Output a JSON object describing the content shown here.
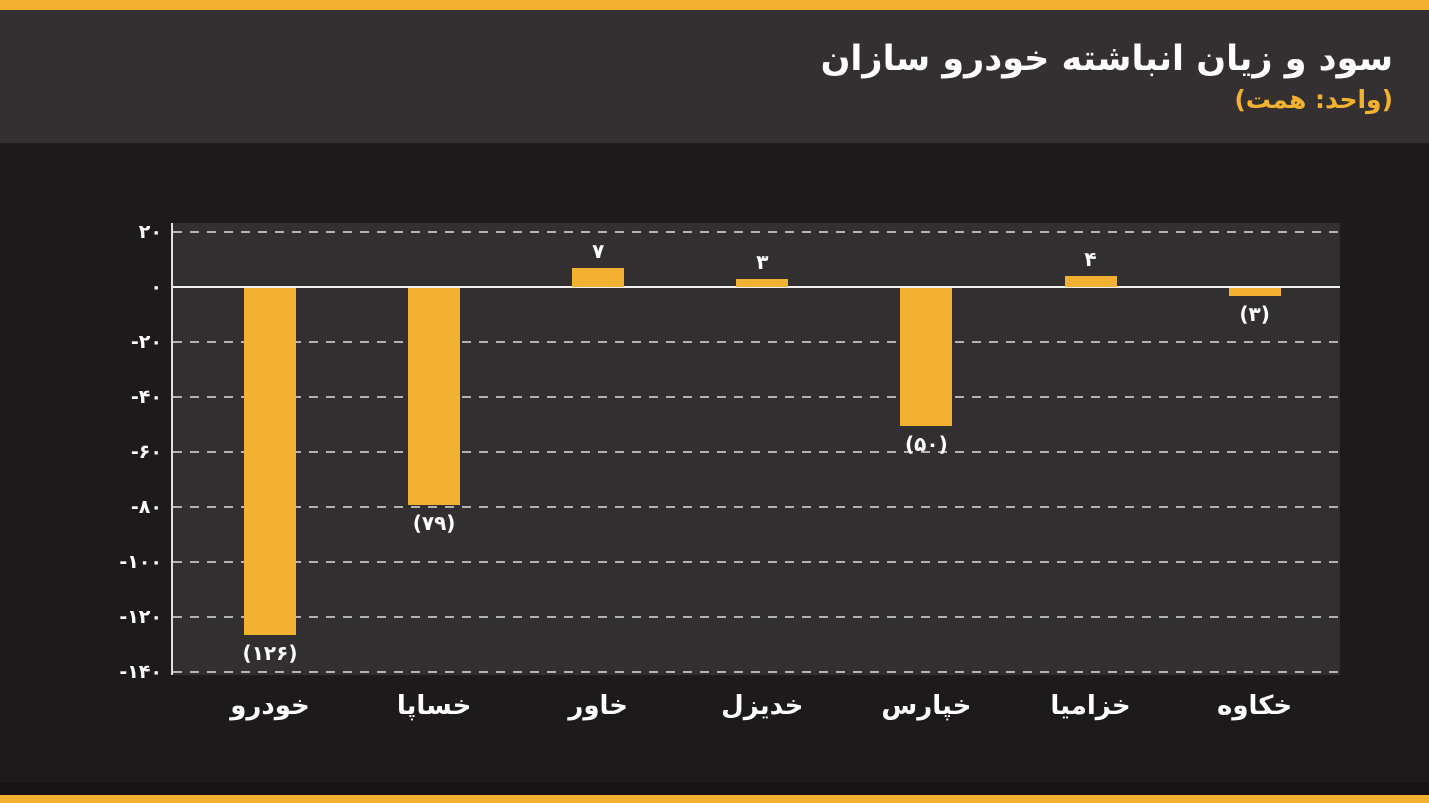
{
  "header": {
    "title": "سود و زیان انباشته خودرو سازان",
    "subtitle": "(واحد: همت)"
  },
  "colors": {
    "accent": "#F2B130",
    "page_bg": "#1D1A1B",
    "header_bg": "#343031",
    "plot_bg": "#322F30",
    "grid": "#C9C9C9",
    "zero_line": "#EFEFEF",
    "axis": "#DFDFDF",
    "text": "#FFFFFF"
  },
  "chart_data": {
    "type": "bar",
    "title": "سود و زیان انباشته خودرو سازان",
    "unit_note": "(واحد: همت)",
    "rtl": true,
    "grid": true,
    "legend": false,
    "categories": [
      "خودرو",
      "خساپا",
      "خاور",
      "خدیزل",
      "خپارس",
      "خزامیا",
      "خکاوه"
    ],
    "values": [
      -126,
      -79,
      7,
      3,
      -50,
      4,
      -3
    ],
    "value_labels": [
      "(۱۲۶)",
      "(۷۹)",
      "۷",
      "۳",
      "(۵۰)",
      "۴",
      "(۳)"
    ],
    "y_ticks": [
      20,
      0,
      -20,
      -40,
      -60,
      -80,
      -100,
      -120,
      -140
    ],
    "y_tick_labels": [
      "۲۰",
      "۰",
      "-۲۰",
      "-۴۰",
      "-۶۰",
      "-۸۰",
      "-۱۰۰",
      "-۱۲۰",
      "-۱۴۰"
    ],
    "ylim": [
      -140,
      20
    ],
    "xlabel": "",
    "ylabel": "",
    "bar_color": "#F2B130"
  }
}
